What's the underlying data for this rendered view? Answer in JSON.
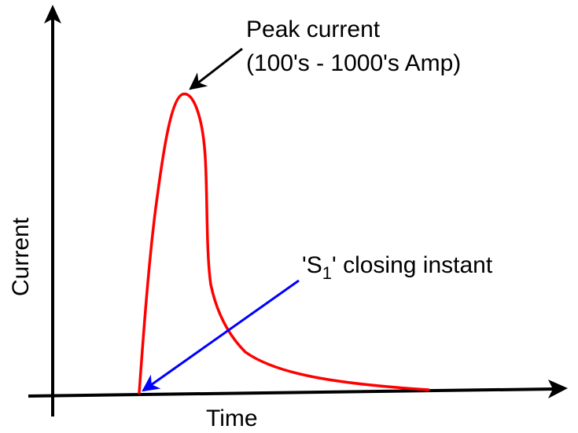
{
  "diagram": {
    "x_axis_label": "Time",
    "y_axis_label": "Current",
    "annotations": {
      "peak": {
        "line1": "Peak current",
        "line2": "(100's - 1000's Amp)"
      },
      "closing": {
        "prefix": "'S",
        "subscript": "1",
        "suffix": "' closing instant"
      }
    },
    "colors": {
      "axes": "#000000",
      "curve": "#ff0000",
      "closing_arrow": "#0000ff",
      "peak_arrow": "#000000"
    }
  }
}
